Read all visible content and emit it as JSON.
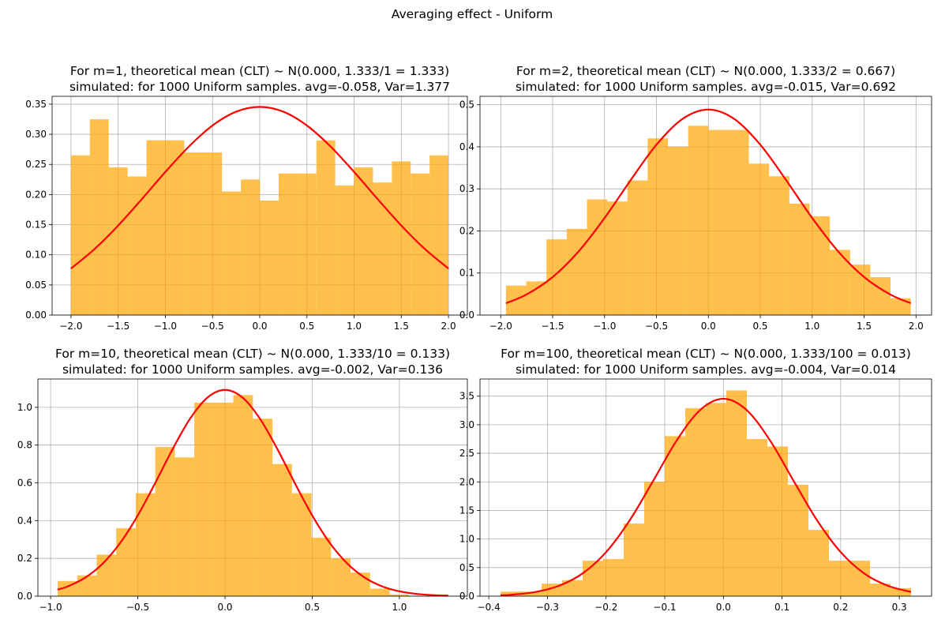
{
  "title": "Averaging effect - Uniform",
  "chart_data": [
    {
      "type": "histogram",
      "title": "For m=1, theoretical mean (CLT) ~ N(0.000, 1.333/1 = 1.333)",
      "subtitle": "simulated: for 1000 Uniform samples. avg=-0.058, Var=1.377",
      "bins": [
        -2.0,
        -1.8,
        -1.6,
        -1.4,
        -1.2,
        -1.0,
        -0.8,
        -0.6,
        -0.4,
        -0.2,
        0.0,
        0.2,
        0.4,
        0.6,
        0.8,
        1.0,
        1.2,
        1.4,
        1.6,
        1.8,
        2.0
      ],
      "values": [
        0.265,
        0.325,
        0.245,
        0.23,
        0.29,
        0.29,
        0.27,
        0.27,
        0.205,
        0.225,
        0.19,
        0.235,
        0.235,
        0.29,
        0.215,
        0.245,
        0.22,
        0.255,
        0.235,
        0.265
      ],
      "color": "orange",
      "alpha": 0.7,
      "line": {
        "color": "red",
        "x": [
          -2.0,
          -1.75,
          -1.5,
          -1.25,
          -1.0,
          -0.75,
          -0.5,
          -0.25,
          0,
          0.25,
          0.5,
          0.75,
          1.0,
          1.25,
          1.5,
          1.75,
          2.0
        ],
        "values": [
          0.0771,
          0.1096,
          0.1486,
          0.1923,
          0.2375,
          0.2798,
          0.3146,
          0.3375,
          0.3455,
          0.3375,
          0.3146,
          0.2798,
          0.2375,
          0.1923,
          0.1486,
          0.1096,
          0.0771
        ]
      },
      "xlim": [
        -2.2,
        2.2
      ],
      "ylim": [
        0,
        0.363
      ],
      "xticks": [
        {
          "value": -2,
          "label": "−2.0"
        },
        {
          "value": -1.5,
          "label": "−1.5"
        },
        {
          "value": -1,
          "label": "−1.0"
        },
        {
          "value": -0.5,
          "label": "−0.5"
        },
        {
          "value": 0,
          "label": "0.0"
        },
        0.5,
        {
          "value": 1,
          "label": "1.0"
        },
        1.5,
        {
          "value": 2,
          "label": "2.0"
        }
      ],
      "yticks": [
        {
          "value": 0,
          "label": "0.00"
        },
        {
          "value": 0.05,
          "label": "0.05"
        },
        {
          "value": 0.1,
          "label": "0.10"
        },
        {
          "value": 0.15,
          "label": "0.15"
        },
        {
          "value": 0.2,
          "label": "0.20"
        },
        {
          "value": 0.25,
          "label": "0.25"
        },
        {
          "value": 0.3,
          "label": "0.30"
        },
        {
          "value": 0.35,
          "label": "0.35"
        }
      ],
      "grid": true
    },
    {
      "type": "histogram",
      "title": "For m=2, theoretical mean (CLT) ~ N(0.000, 1.333/2 = 0.667)",
      "subtitle": "simulated: for 1000 Uniform samples. avg=-0.015, Var=0.692",
      "bins": [
        -1.95,
        -1.755,
        -1.56,
        -1.365,
        -1.17,
        -0.975,
        -0.78,
        -0.585,
        -0.39,
        -0.195,
        0,
        0.195,
        0.39,
        0.585,
        0.78,
        0.975,
        1.17,
        1.365,
        1.56,
        1.755,
        1.95
      ],
      "values": [
        0.07,
        0.08,
        0.18,
        0.205,
        0.275,
        0.27,
        0.32,
        0.42,
        0.4,
        0.45,
        0.44,
        0.44,
        0.36,
        0.33,
        0.265,
        0.235,
        0.155,
        0.12,
        0.09,
        0.04
      ],
      "color": "orange",
      "alpha": 0.7,
      "line": {
        "color": "red",
        "x": [
          -1.95,
          -1.75,
          -1.5,
          -1.25,
          -1.0,
          -0.75,
          -0.5,
          -0.25,
          0,
          0.25,
          0.5,
          0.75,
          1.0,
          1.25,
          1.5,
          1.75,
          1.95
        ],
        "values": [
          0.0282,
          0.0492,
          0.0904,
          0.1514,
          0.2308,
          0.3204,
          0.4051,
          0.4662,
          0.4886,
          0.4662,
          0.4051,
          0.3204,
          0.2308,
          0.1514,
          0.0904,
          0.0492,
          0.0282
        ]
      },
      "xlim": [
        -2.2,
        2.15
      ],
      "ylim": [
        0,
        0.52
      ],
      "xticks": [
        {
          "value": -2,
          "label": "−2.0"
        },
        {
          "value": -1.5,
          "label": "−1.5"
        },
        {
          "value": -1,
          "label": "−1.0"
        },
        {
          "value": -0.5,
          "label": "−0.5"
        },
        {
          "value": 0,
          "label": "0.0"
        },
        0.5,
        {
          "value": 1,
          "label": "1.0"
        },
        1.5,
        {
          "value": 2,
          "label": "2.0"
        }
      ],
      "yticks": [
        {
          "value": 0,
          "label": "0.0"
        },
        0.1,
        0.2,
        0.3,
        0.4,
        0.5
      ],
      "grid": true
    },
    {
      "type": "histogram",
      "title": "For m=10, theoretical mean (CLT) ~ N(0.000, 1.333/10 = 0.133)",
      "subtitle": "simulated: for 1000 Uniform samples. avg=-0.002, Var=0.136",
      "bins": [
        -0.96,
        -0.848,
        -0.736,
        -0.624,
        -0.512,
        -0.4,
        -0.288,
        -0.176,
        -0.064,
        0.048,
        0.16,
        0.272,
        0.384,
        0.496,
        0.608,
        0.72,
        0.832,
        0.944,
        1.056,
        1.168,
        1.28
      ],
      "values": [
        0.08,
        0.11,
        0.22,
        0.36,
        0.545,
        0.79,
        0.735,
        1.025,
        1.025,
        1.065,
        0.94,
        0.7,
        0.545,
        0.31,
        0.2,
        0.125,
        0.04,
        0.009,
        0,
        0.009
      ],
      "color": "orange",
      "alpha": 0.7,
      "line": {
        "color": "red",
        "x": [
          -0.96,
          -0.9,
          -0.8,
          -0.7,
          -0.6,
          -0.5,
          -0.4,
          -0.3,
          -0.2,
          -0.1,
          0,
          0.1,
          0.2,
          0.3,
          0.4,
          0.5,
          0.6,
          0.7,
          0.8,
          0.9,
          1.0,
          1.1,
          1.2,
          1.28
        ],
        "values": [
          0.0345,
          0.0524,
          0.0991,
          0.1739,
          0.2832,
          0.4278,
          0.5996,
          0.7796,
          0.9403,
          1.0523,
          1.0925,
          1.0523,
          0.9403,
          0.7796,
          0.5996,
          0.4278,
          0.2832,
          0.1739,
          0.0991,
          0.0524,
          0.0257,
          0.0117,
          0.0049,
          0.0023
        ]
      },
      "xlim": [
        -1.073,
        1.39
      ],
      "ylim": [
        0,
        1.15
      ],
      "xticks": [
        {
          "value": -1,
          "label": "−1.0"
        },
        {
          "value": -0.5,
          "label": "−0.5"
        },
        {
          "value": 0,
          "label": "0.0"
        },
        0.5,
        {
          "value": 1,
          "label": "1.0"
        }
      ],
      "yticks": [
        {
          "value": 0,
          "label": "0.0"
        },
        0.2,
        0.4,
        0.6,
        0.8,
        {
          "value": 1,
          "label": "1.0"
        }
      ],
      "grid": true
    },
    {
      "type": "histogram",
      "title": "For m=100, theoretical mean (CLT) ~ N(0.000, 1.333/100 = 0.013)",
      "subtitle": "simulated: for 1000 Uniform samples. avg=-0.004, Var=0.014",
      "bins": [
        -0.38,
        -0.345,
        -0.31,
        -0.275,
        -0.24,
        -0.205,
        -0.17,
        -0.135,
        -0.1,
        -0.065,
        -0.03,
        0.005,
        0.04,
        0.075,
        0.11,
        0.145,
        0.18,
        0.215,
        0.25,
        0.285,
        0.32
      ],
      "values": [
        0.08,
        0.08,
        0.22,
        0.28,
        0.62,
        0.65,
        1.27,
        2.0,
        2.8,
        3.29,
        3.38,
        3.6,
        2.75,
        2.62,
        1.95,
        1.16,
        0.62,
        0.62,
        0.22,
        0.14
      ],
      "color": "orange",
      "alpha": 0.7,
      "line": {
        "color": "red",
        "x": [
          -0.38,
          -0.36,
          -0.32,
          -0.28,
          -0.24,
          -0.2,
          -0.16,
          -0.12,
          -0.08,
          -0.04,
          0,
          0.04,
          0.08,
          0.12,
          0.16,
          0.2,
          0.24,
          0.28,
          0.32
        ],
        "values": [
          0.0154,
          0.0268,
          0.074,
          0.183,
          0.398,
          0.771,
          1.323,
          2.013,
          2.718,
          3.254,
          3.455,
          3.254,
          2.718,
          2.013,
          1.323,
          0.771,
          0.398,
          0.183,
          0.074
        ]
      },
      "xlim": [
        -0.415,
        0.355
      ],
      "ylim": [
        0,
        3.8
      ],
      "xticks": [
        {
          "value": -0.4,
          "label": "−0.4"
        },
        {
          "value": -0.3,
          "label": "−0.3"
        },
        {
          "value": -0.2,
          "label": "−0.2"
        },
        {
          "value": -0.1,
          "label": "−0.1"
        },
        {
          "value": 0,
          "label": "0.0"
        },
        0.1,
        0.2,
        0.3
      ],
      "yticks": [
        {
          "value": 0,
          "label": "0.0"
        },
        0.5,
        {
          "value": 1,
          "label": "1.0"
        },
        1.5,
        {
          "value": 2,
          "label": "2.0"
        },
        2.5,
        {
          "value": 3,
          "label": "3.0"
        },
        3.5
      ],
      "grid": true
    }
  ]
}
